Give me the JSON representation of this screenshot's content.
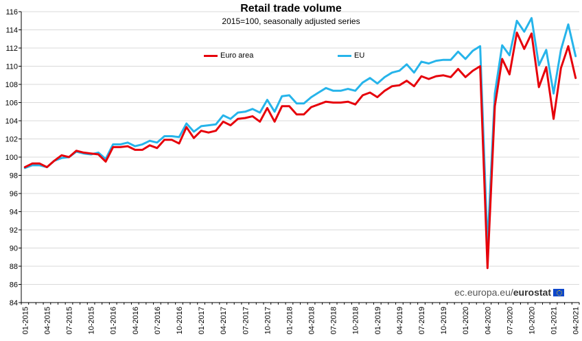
{
  "chart_data": {
    "type": "line",
    "title": "Retail trade volume",
    "subtitle": "2015=100, seasonally adjusted series",
    "ylim": [
      84,
      116
    ],
    "yticks": [
      84,
      86,
      88,
      90,
      92,
      94,
      96,
      98,
      100,
      102,
      104,
      106,
      108,
      110,
      112,
      114,
      116
    ],
    "xtick_labels": [
      "01-2015",
      "04-2015",
      "07-2015",
      "10-2015",
      "01-2016",
      "04-2016",
      "07-2016",
      "10-2016",
      "01-2017",
      "04-2017",
      "07-2017",
      "10-2017",
      "01-2018",
      "04-2018",
      "07-2018",
      "10-2018",
      "01-2019",
      "04-2019",
      "07-2019",
      "10-2019",
      "01-2020",
      "04-2020",
      "07-2020",
      "10-2020",
      "01-2021",
      "04-2021"
    ],
    "grid": "horizontal",
    "legend_position": "top",
    "series": [
      {
        "name": "Euro area",
        "color": "#e6000a",
        "values": [
          98.9,
          99.3,
          99.3,
          98.9,
          99.6,
          100.2,
          100.0,
          100.7,
          100.5,
          100.4,
          100.3,
          99.5,
          101.1,
          101.1,
          101.2,
          100.8,
          100.8,
          101.3,
          101.0,
          101.9,
          101.9,
          101.5,
          103.3,
          102.1,
          102.9,
          102.7,
          102.9,
          103.9,
          103.5,
          104.2,
          104.3,
          104.5,
          103.9,
          105.4,
          103.9,
          105.6,
          105.6,
          104.7,
          104.7,
          105.5,
          105.8,
          106.1,
          106.0,
          106.0,
          106.1,
          105.8,
          106.8,
          107.1,
          106.6,
          107.3,
          107.8,
          107.9,
          108.4,
          107.8,
          108.9,
          108.6,
          108.9,
          109.0,
          108.8,
          109.7,
          108.8,
          109.5,
          110.0,
          87.8,
          105.6,
          110.8,
          109.1,
          113.7,
          111.9,
          113.6,
          107.7,
          109.9,
          104.2,
          109.8,
          112.2,
          108.7
        ]
      },
      {
        "name": "EU",
        "color": "#26b4ea",
        "values": [
          98.8,
          99.1,
          99.1,
          98.9,
          99.6,
          99.9,
          100.0,
          100.6,
          100.4,
          100.3,
          100.5,
          99.8,
          101.4,
          101.4,
          101.6,
          101.2,
          101.4,
          101.8,
          101.6,
          102.3,
          102.3,
          102.2,
          103.7,
          102.8,
          103.4,
          103.5,
          103.6,
          104.6,
          104.2,
          104.9,
          105.0,
          105.3,
          104.9,
          106.3,
          105.0,
          106.7,
          106.8,
          105.9,
          105.9,
          106.6,
          107.1,
          107.6,
          107.3,
          107.3,
          107.5,
          107.3,
          108.2,
          108.7,
          108.1,
          108.8,
          109.3,
          109.5,
          110.2,
          109.3,
          110.5,
          110.3,
          110.6,
          110.7,
          110.7,
          111.6,
          110.8,
          111.7,
          112.2,
          90.3,
          107.0,
          112.3,
          111.2,
          115.0,
          113.8,
          115.3,
          110.1,
          111.8,
          107.0,
          111.8,
          114.6,
          111.1
        ]
      }
    ]
  },
  "source": {
    "text": "ec.europa.eu/",
    "brand": "eurostat"
  }
}
